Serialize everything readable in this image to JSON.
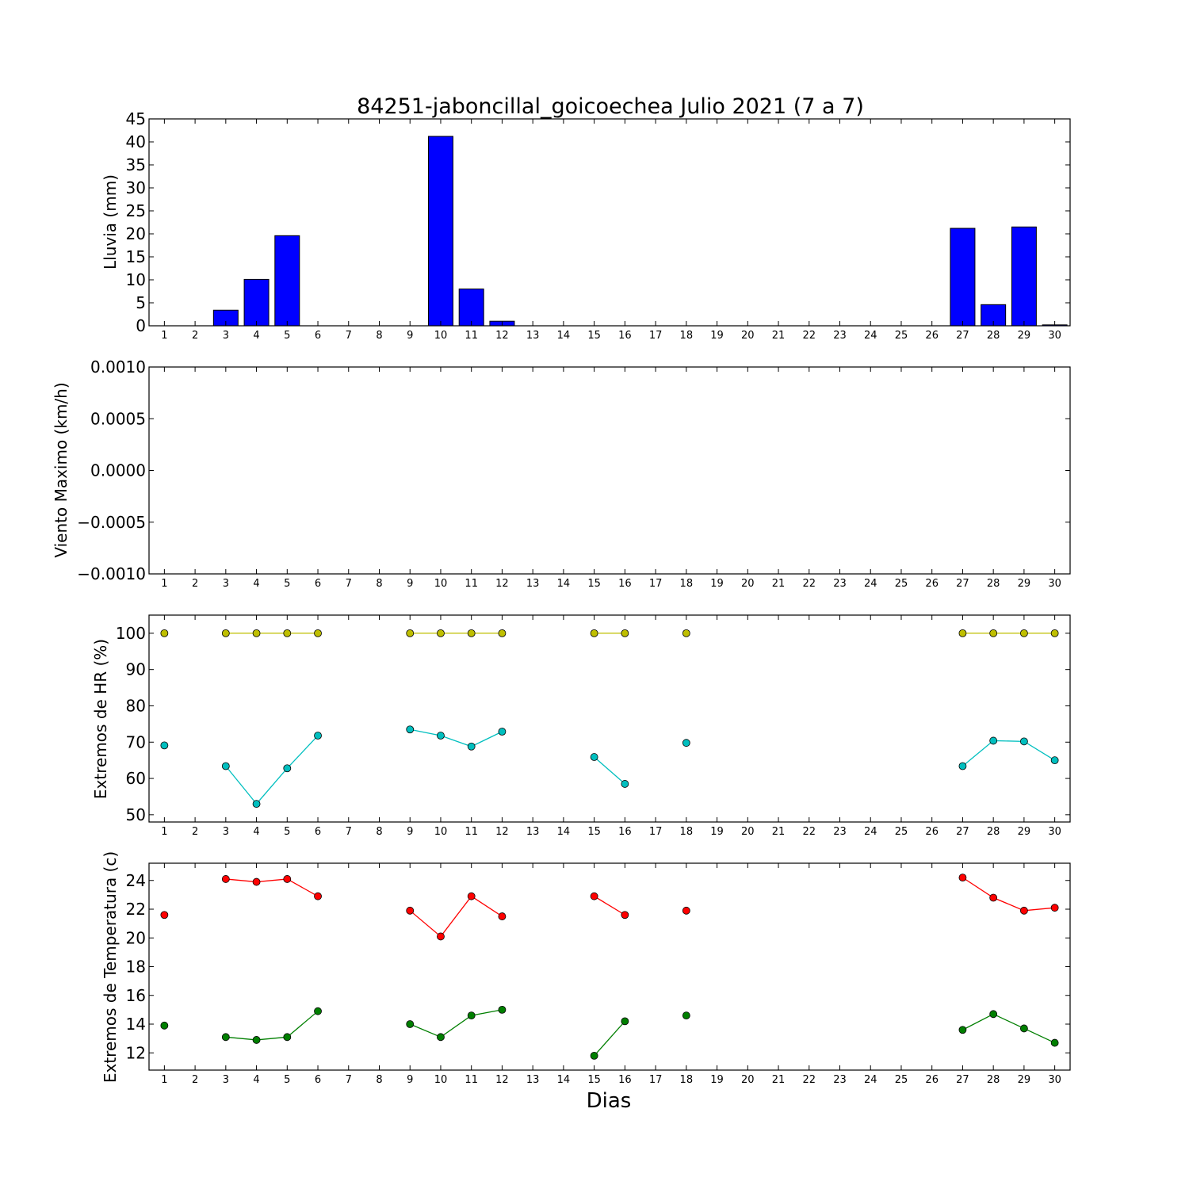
{
  "title": "84251-jaboncillal_goicoechea Julio 2021  (7 a 7)",
  "xlabel": "Dias",
  "days": [
    1,
    2,
    3,
    4,
    5,
    6,
    7,
    8,
    9,
    10,
    11,
    12,
    13,
    14,
    15,
    16,
    17,
    18,
    19,
    20,
    21,
    22,
    23,
    24,
    25,
    26,
    27,
    28,
    29,
    30
  ],
  "colors": {
    "bar": "#0000ff",
    "hr_max": "#bfbf00",
    "hr_min": "#00bfbf",
    "temp_max": "#ff0000",
    "temp_min": "#007f00"
  },
  "chart_data": [
    {
      "type": "bar",
      "ylabel": "Lluvia (mm)",
      "ylim": [
        0,
        45
      ],
      "yticks": [
        0,
        5,
        10,
        15,
        20,
        25,
        30,
        35,
        40,
        45
      ],
      "categories": [
        1,
        2,
        3,
        4,
        5,
        6,
        7,
        8,
        9,
        10,
        11,
        12,
        13,
        14,
        15,
        16,
        17,
        18,
        19,
        20,
        21,
        22,
        23,
        24,
        25,
        26,
        27,
        28,
        29,
        30
      ],
      "values": [
        0,
        0,
        3.4,
        10.1,
        19.6,
        0,
        0,
        0,
        0,
        41.2,
        8,
        1,
        0,
        0,
        0,
        0,
        0,
        0,
        0,
        0,
        0,
        0,
        0,
        0,
        0,
        0,
        21.2,
        4.6,
        21.5,
        0.2
      ]
    },
    {
      "type": "line",
      "ylabel": "Viento Maximo (km/h)",
      "ylim": [
        -0.001,
        0.001
      ],
      "yticks": [
        -0.001,
        -0.0005,
        0,
        0.0005,
        0.001
      ],
      "ytick_labels": [
        "−0.0010",
        "−0.0005",
        "0.0000",
        "0.0005",
        "0.0010"
      ],
      "series": []
    },
    {
      "type": "line",
      "ylabel": "Extremos de HR (%)",
      "ylim": [
        48,
        105
      ],
      "yticks": [
        50,
        60,
        70,
        80,
        90,
        100
      ],
      "x": [
        1,
        2,
        3,
        4,
        5,
        6,
        7,
        8,
        9,
        10,
        11,
        12,
        13,
        14,
        15,
        16,
        17,
        18,
        19,
        20,
        21,
        22,
        23,
        24,
        25,
        26,
        27,
        28,
        29,
        30
      ],
      "series": [
        {
          "key": "hr_max",
          "values": [
            100,
            null,
            100,
            100,
            100,
            100,
            null,
            null,
            100,
            100,
            100,
            100,
            null,
            null,
            100,
            100,
            null,
            100,
            null,
            null,
            null,
            null,
            null,
            null,
            null,
            null,
            100,
            100,
            100,
            100
          ]
        },
        {
          "key": "hr_min",
          "values": [
            69.1,
            null,
            63.4,
            53,
            62.8,
            71.8,
            null,
            null,
            73.5,
            71.8,
            68.8,
            72.9,
            null,
            null,
            65.9,
            58.5,
            null,
            69.8,
            null,
            null,
            null,
            null,
            null,
            null,
            null,
            null,
            63.4,
            70.4,
            70.2,
            65
          ]
        }
      ]
    },
    {
      "type": "line",
      "ylabel": "Extremos de Temperatura (c)",
      "ylim": [
        10.8,
        25.2
      ],
      "yticks": [
        12,
        14,
        16,
        18,
        20,
        22,
        24
      ],
      "x": [
        1,
        2,
        3,
        4,
        5,
        6,
        7,
        8,
        9,
        10,
        11,
        12,
        13,
        14,
        15,
        16,
        17,
        18,
        19,
        20,
        21,
        22,
        23,
        24,
        25,
        26,
        27,
        28,
        29,
        30
      ],
      "series": [
        {
          "key": "temp_max",
          "values": [
            21.6,
            null,
            24.1,
            23.9,
            24.1,
            22.9,
            null,
            null,
            21.9,
            20.1,
            22.9,
            21.5,
            null,
            null,
            22.9,
            21.6,
            null,
            21.9,
            null,
            null,
            null,
            null,
            null,
            null,
            null,
            null,
            24.2,
            22.8,
            21.9,
            22.1
          ]
        },
        {
          "key": "temp_min",
          "values": [
            13.9,
            null,
            13.1,
            12.9,
            13.1,
            14.9,
            null,
            null,
            14,
            13.1,
            14.6,
            15,
            null,
            null,
            11.8,
            14.2,
            null,
            14.6,
            null,
            null,
            null,
            null,
            null,
            null,
            null,
            null,
            13.6,
            14.7,
            13.7,
            12.7
          ]
        }
      ]
    }
  ]
}
